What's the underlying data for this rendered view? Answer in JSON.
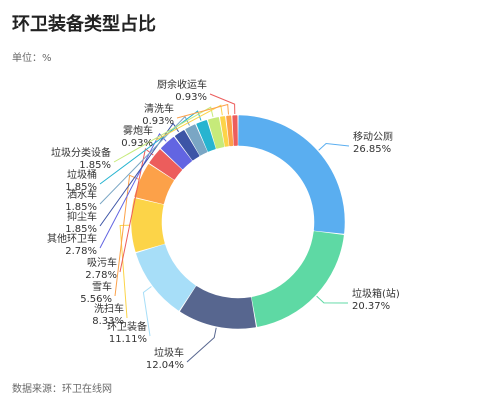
{
  "title": "环卫装备类型占比",
  "unit_label": "单位：%",
  "source": "数据来源：环卫在线网",
  "chart_data": {
    "type": "pie",
    "donut": true,
    "title": "环卫装备类型占比",
    "unit": "%",
    "slices": [
      {
        "name": "移动公厕",
        "label": "26.85%",
        "value": 26.85,
        "color": "#5aaef0"
      },
      {
        "name": "垃圾箱(站)",
        "label": "20.37%",
        "value": 20.37,
        "color": "#5ed9a4"
      },
      {
        "name": "垃圾车",
        "label": "12.04%",
        "value": 12.04,
        "color": "#57668f"
      },
      {
        "name": "环卫装备",
        "label": "11.11%",
        "value": 11.11,
        "color": "#a7def8"
      },
      {
        "name": "洗扫车",
        "label": "8.33%",
        "value": 8.33,
        "color": "#fcd448"
      },
      {
        "name": "雪车",
        "label": "5.56%",
        "value": 5.56,
        "color": "#fca149"
      },
      {
        "name": "吸污车",
        "label": "2.78%",
        "value": 2.78,
        "color": "#ec5d5c"
      },
      {
        "name": "其他环卫车",
        "label": "2.78%",
        "value": 2.78,
        "color": "#6265e2"
      },
      {
        "name": "抑尘车",
        "label": "1.85%",
        "value": 1.85,
        "color": "#3d55a6"
      },
      {
        "name": "洒水车",
        "label": "1.85%",
        "value": 1.85,
        "color": "#7aa6c4"
      },
      {
        "name": "垃圾桶",
        "label": "1.85%",
        "value": 1.85,
        "color": "#27b4d0"
      },
      {
        "name": "垃圾分类设备",
        "label": "1.85%",
        "value": 1.85,
        "color": "#c6ea7a"
      },
      {
        "name": "雾炮车",
        "label": "0.93%",
        "value": 0.93,
        "color": "#fcd448"
      },
      {
        "name": "清洗车",
        "label": "0.93%",
        "value": 0.93,
        "color": "#fca149"
      },
      {
        "name": "厨余收运车",
        "label": "0.93%",
        "value": 0.93,
        "color": "#ec5d5c"
      }
    ]
  }
}
